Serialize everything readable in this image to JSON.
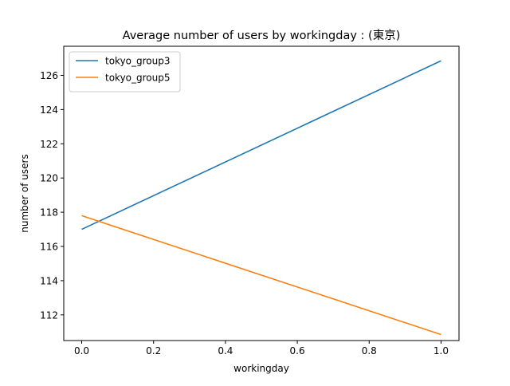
{
  "chart_data": {
    "type": "line",
    "title": "Average number of users by workingday : (東京)",
    "xlabel": "workingday",
    "ylabel": "number of users",
    "xlim": [
      -0.05,
      1.05
    ],
    "ylim": [
      110.5,
      127.7
    ],
    "xticks": [
      0.0,
      0.2,
      0.4,
      0.6,
      0.8,
      1.0
    ],
    "xtick_labels": [
      "0.0",
      "0.2",
      "0.4",
      "0.6",
      "0.8",
      "1.0"
    ],
    "yticks": [
      112,
      114,
      116,
      118,
      120,
      122,
      124,
      126
    ],
    "ytick_labels": [
      "112",
      "114",
      "116",
      "118",
      "120",
      "122",
      "124",
      "126"
    ],
    "grid": false,
    "legend": "top-left",
    "series": [
      {
        "name": "tokyo_group3",
        "color": "#1f77b4",
        "x": [
          0,
          1
        ],
        "values": [
          117.0,
          126.85
        ]
      },
      {
        "name": "tokyo_group5",
        "color": "#ff7f0e",
        "x": [
          0,
          1
        ],
        "values": [
          117.8,
          110.85
        ]
      }
    ]
  }
}
